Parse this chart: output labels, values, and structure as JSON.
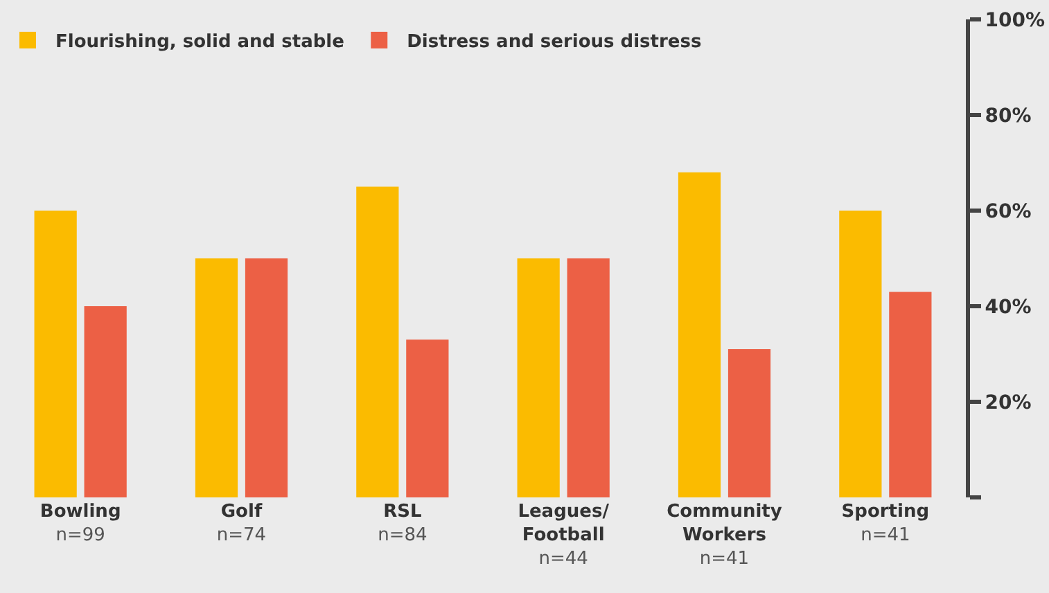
{
  "chart_data": {
    "type": "bar",
    "categories": [
      "Bowling\nn=99",
      "Golf\nn=74",
      "RSL\nn=84",
      "Leagues/\nFootball\nn=44",
      "Community\nWorkers\nn=41",
      "Sporting\nn=41"
    ],
    "series": [
      {
        "name": "Flourishing, solid and stable",
        "color": "#fbbb00",
        "values": [
          60,
          50,
          65,
          50,
          68,
          60
        ]
      },
      {
        "name": "Distress and serious distress",
        "color": "#ec6045",
        "values": [
          40,
          50,
          33,
          50,
          31,
          43
        ]
      }
    ],
    "ylim": [
      0,
      100
    ],
    "yticks": [
      {
        "value": 0,
        "label": null
      },
      {
        "value": 20,
        "label": "20%"
      },
      {
        "value": 40,
        "label": "40%"
      },
      {
        "value": 60,
        "label": "60%"
      },
      {
        "value": 80,
        "label": "80%"
      },
      {
        "value": 100,
        "label": "100%"
      }
    ],
    "grid": false,
    "legend": "top left"
  }
}
